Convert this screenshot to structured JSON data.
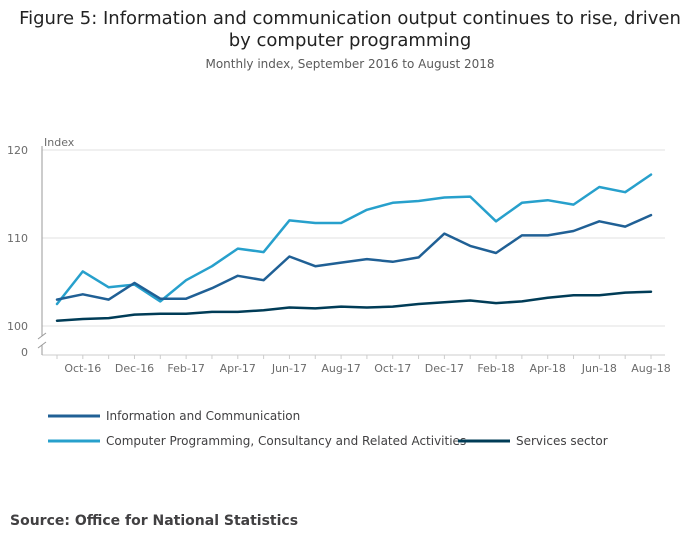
{
  "title_line1": "Figure 5: Information and communication output continues to rise, driven",
  "title_line2": "by computer programming",
  "subtitle": "Monthly index, September 2016 to August 2018",
  "source": "Source: Office for National Statistics",
  "chart_data": {
    "type": "line",
    "ylabel": "Index",
    "y_ticks": [
      "120",
      "110",
      "100",
      "0"
    ],
    "ylim": [
      100,
      120
    ],
    "axis_break": true,
    "grid": true,
    "legend_position": "bottom",
    "x": [
      "Sep-16",
      "Oct-16",
      "Nov-16",
      "Dec-16",
      "Jan-17",
      "Feb-17",
      "Mar-17",
      "Apr-17",
      "May-17",
      "Jun-17",
      "Jul-17",
      "Aug-17",
      "Sep-17",
      "Oct-17",
      "Nov-17",
      "Dec-17",
      "Jan-18",
      "Feb-18",
      "Mar-18",
      "Apr-18",
      "May-18",
      "Jun-18",
      "Jul-18",
      "Aug-18"
    ],
    "x_tick_labels": [
      "Oct-16",
      "Dec-16",
      "Feb-17",
      "Apr-17",
      "Jun-17",
      "Aug-17",
      "Oct-17",
      "Dec-17",
      "Feb-18",
      "Apr-18",
      "Jun-18",
      "Aug-18"
    ],
    "series": [
      {
        "name": "Information and Communication",
        "color": "#206095",
        "values": [
          103.0,
          103.6,
          103.0,
          104.9,
          103.1,
          103.1,
          104.3,
          105.7,
          105.2,
          107.9,
          106.8,
          107.2,
          107.6,
          107.3,
          107.8,
          110.5,
          109.1,
          108.3,
          110.3,
          110.3,
          110.8,
          111.9,
          111.3,
          112.6
        ]
      },
      {
        "name": "Computer Programming, Consultancy and Related Activities",
        "color": "#27a0cc",
        "values": [
          102.5,
          106.2,
          104.4,
          104.7,
          102.8,
          105.2,
          106.8,
          108.8,
          108.4,
          112.0,
          111.7,
          111.7,
          113.2,
          114.0,
          114.2,
          114.6,
          114.7,
          111.9,
          114.0,
          114.3,
          113.8,
          115.8,
          115.2,
          117.2
        ]
      },
      {
        "name": "Services sector",
        "color": "#003c57",
        "values": [
          100.6,
          100.8,
          100.9,
          101.3,
          101.4,
          101.4,
          101.6,
          101.6,
          101.8,
          102.1,
          102.0,
          102.2,
          102.1,
          102.2,
          102.5,
          102.7,
          102.9,
          102.6,
          102.8,
          103.2,
          103.5,
          103.5,
          103.8,
          103.9
        ]
      }
    ]
  }
}
